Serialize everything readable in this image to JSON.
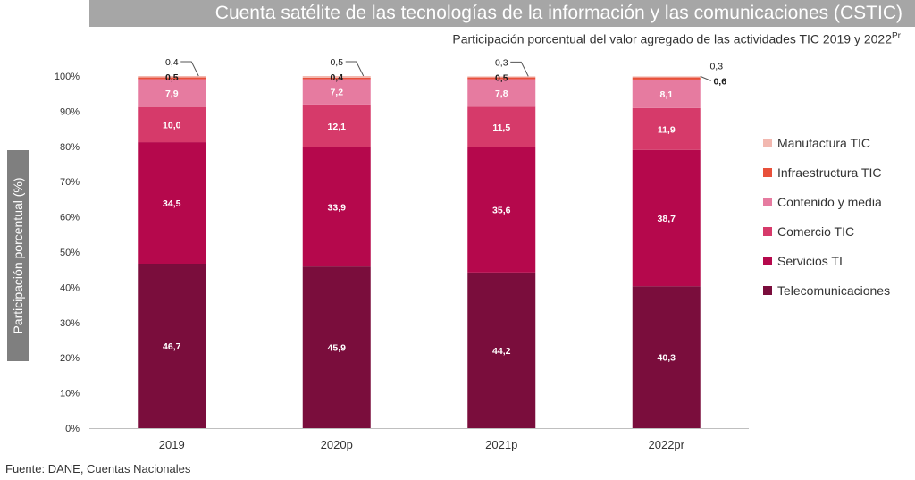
{
  "title": "Cuenta satélite de las tecnologías de la información y las comunicaciones (CSTIC)",
  "subtitle": "Participación porcentual del valor agregado de las actividades TIC 2019 y 2022",
  "subtitle_sup": "Pr",
  "source": "Fuente: DANE, Cuentas Nacionales",
  "chart_data": {
    "type": "bar",
    "stacked": true,
    "categories": [
      "2019",
      "2020p",
      "2021p",
      "2022pr"
    ],
    "ylabel": "Participación porcentual (%)",
    "xlabel": "",
    "ylim": [
      0,
      100
    ],
    "yticks": [
      "0%",
      "10%",
      "20%",
      "30%",
      "40%",
      "50%",
      "60%",
      "70%",
      "80%",
      "90%",
      "100%"
    ],
    "legend_position": "right",
    "grid": false,
    "series": [
      {
        "name": "Telecomunicaciones",
        "color": "#7a0d3c",
        "values": [
          46.7,
          45.9,
          44.2,
          40.3
        ],
        "labels": [
          "46,7",
          "45,9",
          "44,2",
          "40,3"
        ]
      },
      {
        "name": "Servicios TI",
        "color": "#b5084c",
        "values": [
          34.5,
          33.9,
          35.6,
          38.7
        ],
        "labels": [
          "34,5",
          "33,9",
          "35,6",
          "38,7"
        ]
      },
      {
        "name": "Comercio TIC",
        "color": "#d63a6a",
        "values": [
          10.0,
          12.1,
          11.5,
          11.9
        ],
        "labels": [
          "10,0",
          "12,1",
          "11,5",
          "11,9"
        ]
      },
      {
        "name": "Contenido y media",
        "color": "#e67ba0",
        "values": [
          7.9,
          7.2,
          7.8,
          8.1
        ],
        "labels": [
          "7,9",
          "7,2",
          "7,8",
          "8,1"
        ]
      },
      {
        "name": "Infraestructura TIC",
        "color": "#e8503a",
        "values": [
          0.5,
          0.4,
          0.5,
          0.6
        ],
        "labels": [
          "0,5",
          "0,4",
          "0,5",
          "0,6"
        ]
      },
      {
        "name": "Manufactura TIC",
        "color": "#f2b8b0",
        "values": [
          0.4,
          0.5,
          0.3,
          0.3
        ],
        "labels": [
          "0,4",
          "0,5",
          "0,3",
          "0,3"
        ]
      }
    ]
  }
}
